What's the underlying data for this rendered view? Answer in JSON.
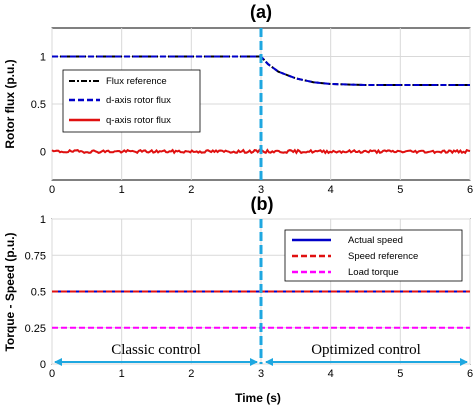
{
  "chart_data": [
    {
      "type": "line",
      "panel_label": "(a)",
      "title": "",
      "xlabel": "",
      "ylabel": "Rotor flux (p.u.)",
      "xlim": [
        0,
        6
      ],
      "ylim": [
        -0.3,
        1.3
      ],
      "xticks": [
        "0",
        "1",
        "2",
        "3",
        "4",
        "5",
        "6"
      ],
      "yticks": [
        {
          "value": 1,
          "label": "1"
        },
        {
          "value": 0.5,
          "label": "0.5"
        },
        {
          "value": 0,
          "label": "0"
        }
      ],
      "legend_position": "lower-left",
      "series": [
        {
          "name": "Flux reference",
          "color": "#000000",
          "style": "dash-dot",
          "x": [
            0,
            3,
            3.1,
            3.25,
            3.5,
            3.75,
            4,
            4.5,
            5,
            5.5,
            6
          ],
          "y": [
            1,
            1,
            0.92,
            0.84,
            0.77,
            0.73,
            0.71,
            0.7,
            0.7,
            0.7,
            0.7
          ]
        },
        {
          "name": "d-axis rotor flux",
          "color": "#0000c8",
          "style": "dashed",
          "x": [
            0,
            3,
            3.1,
            3.25,
            3.5,
            3.75,
            4,
            4.5,
            5,
            5.5,
            6
          ],
          "y": [
            1,
            1,
            0.92,
            0.84,
            0.77,
            0.73,
            0.71,
            0.7,
            0.7,
            0.7,
            0.7
          ]
        },
        {
          "name": "q-axis rotor flux",
          "color": "#e01010",
          "style": "solid",
          "x": [
            0,
            1,
            2,
            3,
            4,
            5,
            6
          ],
          "y": [
            0,
            0,
            0,
            0,
            0,
            0,
            0
          ]
        }
      ],
      "marker_line": {
        "x": 3,
        "color": "#1ea7e0",
        "style": "dashed"
      }
    },
    {
      "type": "line",
      "panel_label": "(b)",
      "title": "",
      "xlabel": "Time (s)",
      "ylabel": "Torque - Speed (p.u.)",
      "xlim": [
        0,
        6
      ],
      "ylim": [
        0,
        1
      ],
      "xticks": [
        "0",
        "1",
        "2",
        "3",
        "4",
        "5",
        "6"
      ],
      "yticks": [
        {
          "value": 1,
          "label": "1"
        },
        {
          "value": 0.75,
          "label": "0.75"
        },
        {
          "value": 0.5,
          "label": "0.5"
        },
        {
          "value": 0.25,
          "label": "0.25"
        },
        {
          "value": 0,
          "label": "0"
        }
      ],
      "legend_position": "top-right",
      "series": [
        {
          "name": "Actual speed",
          "color": "#0000c8",
          "style": "solid",
          "x": [
            0,
            6
          ],
          "y": [
            0.5,
            0.5
          ]
        },
        {
          "name": "Speed reference",
          "color": "#e01010",
          "style": "dashed",
          "x": [
            0,
            6
          ],
          "y": [
            0.5,
            0.5
          ]
        },
        {
          "name": "Load torque",
          "color": "#ff00ff",
          "style": "dashed",
          "x": [
            0,
            6
          ],
          "y": [
            0.25,
            0.25
          ]
        }
      ],
      "marker_line": {
        "x": 3,
        "color": "#1ea7e0",
        "style": "dashed"
      },
      "annotations": [
        {
          "text": "Classic control",
          "x_range": [
            0,
            3
          ]
        },
        {
          "text": "Optimized control",
          "x_range": [
            3,
            6
          ]
        }
      ]
    }
  ]
}
